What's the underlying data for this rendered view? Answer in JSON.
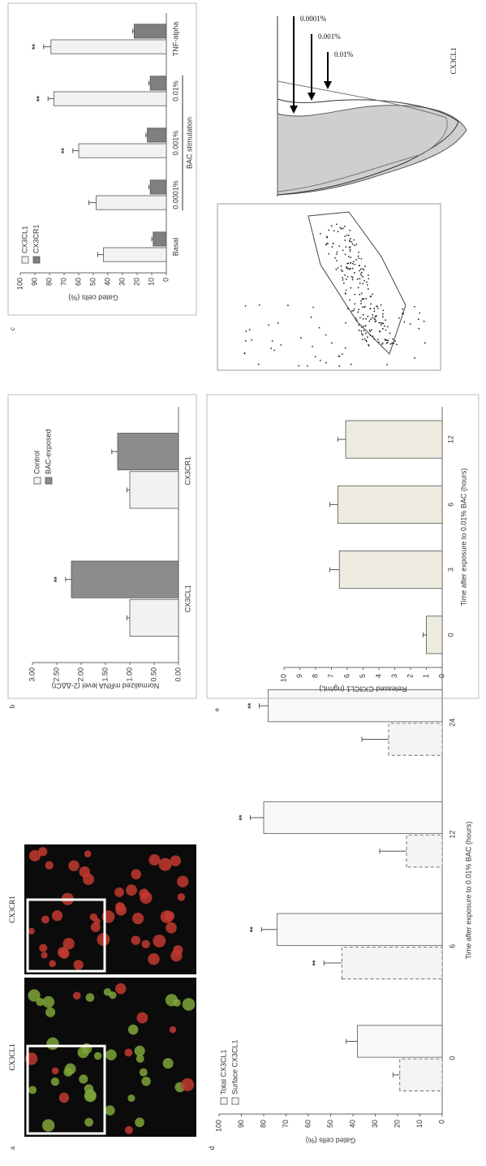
{
  "panel_labels": [
    "a",
    "b",
    "c",
    "d",
    "e"
  ],
  "panel_a": {
    "labels": [
      "CX3CL1",
      "CX3CR1"
    ]
  },
  "chart_data": [
    {
      "type": "bar",
      "y_label": "Normalized mRNA level (2-ΔΔCt)",
      "categories": [
        "CX3CL1",
        "CX3CR1"
      ],
      "series": [
        {
          "name": "Control",
          "color": "#f2f2f2",
          "values": [
            1.0,
            1.0
          ],
          "errors": [
            0.06,
            0.06
          ]
        },
        {
          "name": "BAC-exposed",
          "color": "#8c8c8c",
          "values": [
            2.2,
            1.25
          ],
          "errors": [
            0.12,
            0.12
          ],
          "significance": [
            "**",
            null
          ]
        }
      ],
      "ylim": [
        0,
        3
      ],
      "yticks": [
        {
          "value": 0,
          "label": "0.00"
        },
        {
          "value": 0.5,
          "label": "0.50"
        },
        {
          "value": 1,
          "label": "1.00"
        },
        {
          "value": 1.5,
          "label": "1.50"
        },
        {
          "value": 2,
          "label": "2.00"
        },
        {
          "value": 2.5,
          "label": "2.50"
        },
        {
          "value": 3,
          "label": "3.00"
        }
      ],
      "legend": "upper right"
    },
    {
      "type": "bar",
      "y_label": "Gated cells (%)",
      "x_label": "BAC stimulation",
      "categories": [
        "Basal",
        "0.0001%",
        "0.001%",
        "0.01%",
        "TNF-alpha"
      ],
      "series": [
        {
          "name": "CX3CL1",
          "color": "#f2f2f2",
          "values": [
            43,
            48,
            60,
            77,
            79
          ],
          "errors": [
            4,
            5,
            4,
            4,
            5
          ],
          "significance": [
            null,
            null,
            "**",
            "**",
            "**"
          ]
        },
        {
          "name": "CX3CR1",
          "color": "#7f7f7f",
          "values": [
            9,
            11,
            13,
            11,
            22
          ],
          "errors": [
            1,
            1,
            1,
            1,
            1
          ]
        }
      ],
      "ylim": [
        0,
        100
      ],
      "yticks": [
        0,
        10,
        20,
        30,
        40,
        50,
        60,
        70,
        80,
        90,
        100
      ],
      "legend": "upper left"
    },
    {
      "type": "bar",
      "y_label": "Gated cells (%)",
      "x_label": "Time after exposure to 0.01% BAC (hours)",
      "categories": [
        "0",
        "6",
        "12",
        "24"
      ],
      "series": [
        {
          "name": "Total CX3CL1",
          "color": "#f4f4f4",
          "line_style": "dashed",
          "values": [
            19,
            45,
            16,
            24
          ],
          "errors": [
            3,
            8,
            12,
            12
          ],
          "significance": [
            null,
            "**",
            null,
            null
          ]
        },
        {
          "name": "Surface CX3CL1",
          "color": "#f8f8f8",
          "values": [
            38,
            74,
            80,
            78
          ],
          "errors": [
            5,
            7,
            6,
            4
          ],
          "significance": [
            null,
            "**",
            "**",
            "**"
          ]
        }
      ],
      "ylim": [
        0,
        100
      ],
      "yticks": [
        0,
        10,
        20,
        30,
        40,
        50,
        60,
        70,
        80,
        90,
        100
      ],
      "legend": "upper left"
    },
    {
      "type": "bar",
      "y_label": "Released CX3CL1 (ng/mL)",
      "x_label": "Time after exposure to 0.01% BAC (hours)",
      "categories": [
        "0",
        "3",
        "6",
        "12"
      ],
      "series": [
        {
          "color": "#eeebe0",
          "values": [
            1,
            6.5,
            6.6,
            6.1
          ],
          "errors": [
            0.2,
            0.6,
            0.5,
            0.5
          ]
        }
      ],
      "ylim": [
        0,
        10
      ],
      "yticks": [
        0,
        1,
        2,
        3,
        4,
        5,
        6,
        7,
        8,
        9,
        10
      ]
    }
  ],
  "flow_cytometry": {
    "arrows": [
      "0.0001%",
      "0.001%",
      "0.01%"
    ],
    "x_label": "CX3CL1"
  }
}
